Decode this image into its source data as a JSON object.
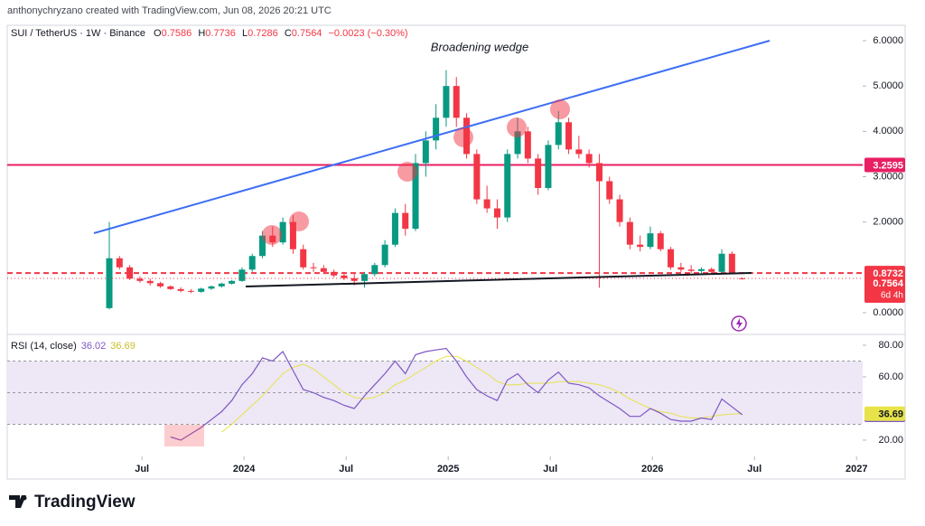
{
  "header": {
    "credit": "anthonychryzano created with TradingView.com, Jun 08, 2026 20:21 UTC",
    "brand": "TradingView"
  },
  "chart_data": [
    {
      "type": "candlestick",
      "symbol": "SUI / TetherUS · 1W · Binance",
      "ohlc_labels": [
        "O",
        "H",
        "L",
        "C"
      ],
      "change": "−0.0023 (−0.30%)",
      "annotation": "Broadening wedge",
      "countdown": "6d 4h",
      "up_color": "#089981",
      "down_color": "#f23645",
      "xlim": [
        2022.84,
        2027.03
      ],
      "ylim": [
        -0.44,
        6.2
      ],
      "yticks": [
        {
          "value": 6,
          "label": "6.0000"
        },
        {
          "value": 5,
          "label": "5.0000"
        },
        {
          "value": 4,
          "label": "4.0000"
        },
        {
          "value": 3,
          "label": "3.0000"
        },
        {
          "value": 2,
          "label": "2.0000"
        },
        {
          "value": 0,
          "label": "0.0000"
        }
      ],
      "levels": [
        {
          "value": 3.2595,
          "color": "#e91e63",
          "style": "solid"
        },
        {
          "value": 0.8732,
          "color": "#f23645",
          "style": "dashed"
        }
      ],
      "x": [
        2023.34,
        2023.39,
        2023.44,
        2023.49,
        2023.54,
        2023.59,
        2023.64,
        2023.69,
        2023.74,
        2023.79,
        2023.84,
        2023.89,
        2023.94,
        2023.99,
        2024.04,
        2024.09,
        2024.14,
        2024.19,
        2024.24,
        2024.29,
        2024.34,
        2024.39,
        2024.44,
        2024.49,
        2024.54,
        2024.59,
        2024.64,
        2024.69,
        2024.74,
        2024.79,
        2024.84,
        2024.89,
        2024.94,
        2024.99,
        2025.04,
        2025.09,
        2025.14,
        2025.19,
        2025.24,
        2025.29,
        2025.34,
        2025.39,
        2025.44,
        2025.49,
        2025.54,
        2025.59,
        2025.64,
        2025.69,
        2025.74,
        2025.79,
        2025.84,
        2025.89,
        2025.94,
        2025.99,
        2026.04,
        2026.09,
        2026.14,
        2026.19,
        2026.24,
        2026.29,
        2026.34,
        2026.39,
        2026.44
      ],
      "ohlc": [
        [
          0.1,
          2.0,
          0.07,
          1.2
        ],
        [
          1.2,
          1.25,
          0.95,
          1.0
        ],
        [
          1.0,
          1.05,
          0.72,
          0.75
        ],
        [
          0.75,
          0.8,
          0.66,
          0.7
        ],
        [
          0.7,
          0.75,
          0.6,
          0.65
        ],
        [
          0.65,
          0.68,
          0.55,
          0.58
        ],
        [
          0.58,
          0.6,
          0.5,
          0.52
        ],
        [
          0.52,
          0.56,
          0.45,
          0.48
        ],
        [
          0.48,
          0.52,
          0.43,
          0.46
        ],
        [
          0.46,
          0.55,
          0.44,
          0.53
        ],
        [
          0.53,
          0.6,
          0.5,
          0.58
        ],
        [
          0.58,
          0.66,
          0.55,
          0.64
        ],
        [
          0.64,
          0.72,
          0.62,
          0.7
        ],
        [
          0.7,
          1.0,
          0.68,
          0.95
        ],
        [
          0.95,
          1.3,
          0.9,
          1.25
        ],
        [
          1.25,
          1.8,
          1.2,
          1.7
        ],
        [
          1.7,
          1.9,
          1.45,
          1.55
        ],
        [
          1.55,
          2.1,
          1.5,
          2.0
        ],
        [
          2.0,
          2.15,
          1.3,
          1.4
        ],
        [
          1.4,
          1.5,
          0.95,
          1.0
        ],
        [
          1.0,
          1.1,
          0.9,
          0.98
        ],
        [
          0.98,
          1.05,
          0.85,
          0.9
        ],
        [
          0.9,
          0.95,
          0.78,
          0.82
        ],
        [
          0.82,
          0.9,
          0.72,
          0.76
        ],
        [
          0.76,
          0.85,
          0.6,
          0.7
        ],
        [
          0.7,
          0.9,
          0.55,
          0.85
        ],
        [
          0.85,
          1.1,
          0.8,
          1.05
        ],
        [
          1.05,
          1.6,
          1.0,
          1.5
        ],
        [
          1.5,
          2.3,
          1.45,
          2.2
        ],
        [
          2.2,
          2.4,
          1.7,
          1.85
        ],
        [
          1.85,
          3.5,
          1.8,
          3.3
        ],
        [
          3.3,
          4.0,
          3.0,
          3.8
        ],
        [
          3.8,
          4.6,
          3.6,
          4.3
        ],
        [
          4.3,
          5.35,
          4.1,
          5.0
        ],
        [
          5.0,
          5.2,
          4.1,
          4.3
        ],
        [
          4.3,
          4.4,
          3.4,
          3.5
        ],
        [
          3.5,
          3.6,
          2.4,
          2.5
        ],
        [
          2.5,
          2.8,
          2.2,
          2.3
        ],
        [
          2.3,
          2.5,
          1.85,
          2.1
        ],
        [
          2.1,
          3.6,
          2.0,
          3.5
        ],
        [
          3.5,
          4.3,
          3.4,
          4.0
        ],
        [
          4.0,
          4.1,
          3.3,
          3.4
        ],
        [
          3.4,
          3.5,
          2.6,
          2.75
        ],
        [
          2.75,
          3.8,
          2.7,
          3.7
        ],
        [
          3.7,
          4.45,
          3.6,
          4.2
        ],
        [
          4.2,
          4.3,
          3.5,
          3.6
        ],
        [
          3.6,
          3.9,
          3.4,
          3.5
        ],
        [
          3.5,
          3.6,
          3.2,
          3.3
        ],
        [
          3.3,
          3.5,
          0.55,
          2.9
        ],
        [
          2.9,
          3.0,
          2.4,
          2.5
        ],
        [
          2.5,
          2.6,
          1.9,
          2.0
        ],
        [
          2.0,
          2.1,
          1.4,
          1.5
        ],
        [
          1.5,
          1.7,
          1.35,
          1.45
        ],
        [
          1.45,
          1.9,
          1.4,
          1.75
        ],
        [
          1.75,
          1.8,
          1.35,
          1.4
        ],
        [
          1.4,
          1.45,
          0.95,
          1.0
        ],
        [
          1.0,
          1.1,
          0.9,
          0.95
        ],
        [
          0.95,
          1.05,
          0.88,
          0.92
        ],
        [
          0.92,
          1.0,
          0.86,
          0.96
        ],
        [
          0.96,
          1.0,
          0.85,
          0.9
        ],
        [
          0.9,
          1.4,
          0.88,
          1.3
        ],
        [
          1.3,
          1.35,
          0.85,
          0.87
        ],
        [
          0.7586,
          0.7736,
          0.7286,
          0.7564
        ]
      ]
    },
    {
      "type": "line",
      "title": "RSI (14, close)",
      "xlim": [
        2022.84,
        2027.03
      ],
      "ylim": [
        9.7,
        85.7
      ],
      "yticks": [
        {
          "value": 80,
          "label": "80.00"
        },
        {
          "value": 60,
          "label": "60.00"
        },
        {
          "value": 20,
          "label": "20.00"
        }
      ],
      "xticks": [
        {
          "value": 2023.5,
          "label": "Jul"
        },
        2024,
        {
          "value": 2024.5,
          "label": "Jul"
        },
        2025,
        {
          "value": 2025.5,
          "label": "Jul"
        },
        2026,
        {
          "value": 2026.5,
          "label": "Jul"
        },
        2027
      ],
      "levels": [
        70,
        50,
        30
      ],
      "band_color": "#ede7f6",
      "x": [
        2023.34,
        2023.39,
        2023.44,
        2023.49,
        2023.54,
        2023.59,
        2023.64,
        2023.69,
        2023.74,
        2023.79,
        2023.84,
        2023.89,
        2023.94,
        2023.99,
        2024.04,
        2024.09,
        2024.14,
        2024.19,
        2024.24,
        2024.29,
        2024.34,
        2024.39,
        2024.44,
        2024.49,
        2024.54,
        2024.59,
        2024.64,
        2024.69,
        2024.74,
        2024.79,
        2024.84,
        2024.89,
        2024.94,
        2024.99,
        2025.04,
        2025.09,
        2025.14,
        2025.19,
        2025.24,
        2025.29,
        2025.34,
        2025.39,
        2025.44,
        2025.49,
        2025.54,
        2025.59,
        2025.64,
        2025.69,
        2025.74,
        2025.79,
        2025.84,
        2025.89,
        2025.94,
        2025.99,
        2026.04,
        2026.09,
        2026.14,
        2026.19,
        2026.24,
        2026.29,
        2026.34,
        2026.39,
        2026.44
      ],
      "series": [
        {
          "name": "RSI",
          "color": "#7e57c2",
          "values": [
            null,
            null,
            null,
            null,
            null,
            null,
            22,
            20,
            24,
            28,
            33,
            38,
            45,
            55,
            62,
            72,
            70,
            76,
            64,
            52,
            50,
            47,
            45,
            42,
            40,
            48,
            55,
            62,
            70,
            62,
            74,
            76,
            77,
            78,
            70,
            60,
            52,
            48,
            45,
            58,
            62,
            55,
            50,
            58,
            63,
            56,
            55,
            53,
            48,
            44,
            40,
            35,
            35,
            40,
            37,
            33,
            32,
            32,
            34,
            33,
            46,
            41,
            36.02
          ]
        },
        {
          "name": "RSI-based MA",
          "color": "#e8e34a",
          "values": [
            null,
            null,
            null,
            null,
            null,
            null,
            null,
            null,
            null,
            null,
            null,
            25,
            30,
            36,
            42,
            48,
            55,
            62,
            66,
            68,
            65,
            60,
            55,
            50,
            47,
            46,
            47,
            50,
            55,
            58,
            62,
            66,
            70,
            73,
            73,
            70,
            66,
            62,
            57,
            55,
            55,
            56,
            56,
            56,
            57,
            57,
            57,
            56,
            55,
            53,
            50,
            46,
            43,
            40,
            38,
            37,
            35,
            34,
            34,
            35,
            36,
            36.5,
            36.69
          ]
        }
      ]
    }
  ]
}
